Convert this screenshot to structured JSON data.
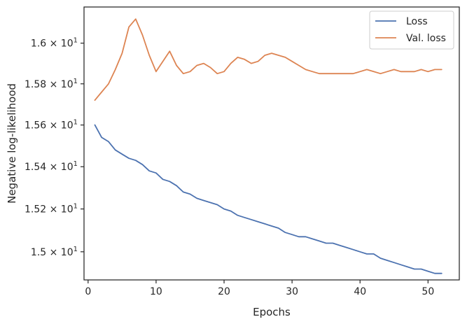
{
  "chart_data": {
    "type": "line",
    "title": "",
    "xlabel": "Epochs",
    "ylabel": "Negative log-likelihood",
    "xlim": [
      -0.6,
      54.6
    ],
    "ylim": [
      14.87,
      16.18
    ],
    "y_scale": "log",
    "grid": false,
    "legend_position": "top-right",
    "x_ticks": [
      0,
      10,
      20,
      30,
      40,
      50
    ],
    "x_tick_labels": [
      "0",
      "10",
      "20",
      "30",
      "40",
      "50"
    ],
    "y_ticks": [
      15.0,
      15.2,
      15.4,
      15.6,
      15.8,
      16.0
    ],
    "y_tick_labels": [
      {
        "mantissa": "1.5",
        "base": "10",
        "exp": "1"
      },
      {
        "mantissa": "1.52",
        "base": "10",
        "exp": "1"
      },
      {
        "mantissa": "1.54",
        "base": "10",
        "exp": "1"
      },
      {
        "mantissa": "1.56",
        "base": "10",
        "exp": "1"
      },
      {
        "mantissa": "1.58",
        "base": "10",
        "exp": "1"
      },
      {
        "mantissa": "1.6",
        "base": "10",
        "exp": "1"
      }
    ],
    "x": [
      1,
      2,
      3,
      4,
      5,
      6,
      7,
      8,
      9,
      10,
      11,
      12,
      13,
      14,
      15,
      16,
      17,
      18,
      19,
      20,
      21,
      22,
      23,
      24,
      25,
      26,
      27,
      28,
      29,
      30,
      31,
      32,
      33,
      34,
      35,
      36,
      37,
      38,
      39,
      40,
      41,
      42,
      43,
      44,
      45,
      46,
      47,
      48,
      49,
      50,
      51,
      52
    ],
    "series": [
      {
        "name": "Loss",
        "color": "#4c72b0",
        "values": [
          15.6,
          15.54,
          15.52,
          15.48,
          15.46,
          15.44,
          15.43,
          15.41,
          15.38,
          15.37,
          15.34,
          15.33,
          15.31,
          15.28,
          15.27,
          15.25,
          15.24,
          15.23,
          15.22,
          15.2,
          15.19,
          15.17,
          15.16,
          15.15,
          15.14,
          15.13,
          15.12,
          15.11,
          15.09,
          15.08,
          15.07,
          15.07,
          15.06,
          15.05,
          15.04,
          15.04,
          15.03,
          15.02,
          15.01,
          15.0,
          14.99,
          14.99,
          14.97,
          14.96,
          14.95,
          14.94,
          14.93,
          14.92,
          14.92,
          14.91,
          14.9,
          14.9
        ]
      },
      {
        "name": "Val. loss",
        "color": "#dd8452",
        "values": [
          15.72,
          15.76,
          15.8,
          15.87,
          15.95,
          16.08,
          16.12,
          16.04,
          15.94,
          15.86,
          15.91,
          15.96,
          15.89,
          15.85,
          15.86,
          15.89,
          15.9,
          15.88,
          15.85,
          15.86,
          15.9,
          15.93,
          15.92,
          15.9,
          15.91,
          15.94,
          15.95,
          15.94,
          15.93,
          15.91,
          15.89,
          15.87,
          15.86,
          15.85,
          15.85,
          15.85,
          15.85,
          15.85,
          15.85,
          15.86,
          15.87,
          15.86,
          15.85,
          15.86,
          15.87,
          15.86,
          15.86,
          15.86,
          15.87,
          15.86,
          15.87,
          15.87
        ]
      }
    ]
  }
}
